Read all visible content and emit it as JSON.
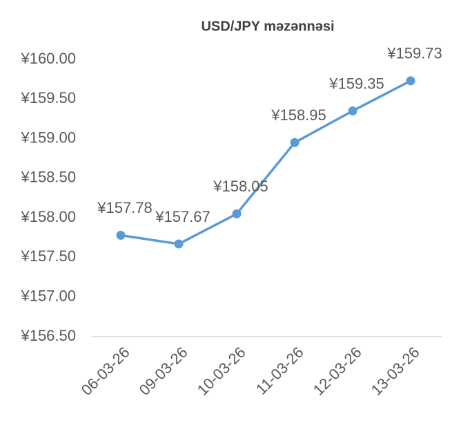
{
  "chart_data": {
    "type": "line",
    "title": "USD/JPY məzənnəsi",
    "categories": [
      "06-03-26",
      "09-03-26",
      "10-03-26",
      "11-03-26",
      "12-03-26",
      "13-03-26"
    ],
    "series": [
      {
        "color": "#5b9bd5",
        "values": [
          157.78,
          157.67,
          158.05,
          158.95,
          159.35,
          159.73
        ],
        "value_labels": [
          "¥157.78",
          "¥157.67",
          "¥158.05",
          "¥158.95",
          "¥159.35",
          "¥159.73"
        ]
      }
    ],
    "ylim": [
      156.5,
      160
    ],
    "yticks": [
      {
        "value": 156.5,
        "label": "¥156.50"
      },
      {
        "value": 157,
        "label": "¥157.00"
      },
      {
        "value": 157.5,
        "label": "¥157.50"
      },
      {
        "value": 158,
        "label": "¥158.00"
      },
      {
        "value": 158.5,
        "label": "¥158.50"
      },
      {
        "value": 159,
        "label": "¥159.00"
      },
      {
        "value": 159.5,
        "label": "¥159.50"
      },
      {
        "value": 160,
        "label": "¥160.00"
      }
    ],
    "grid": false
  }
}
